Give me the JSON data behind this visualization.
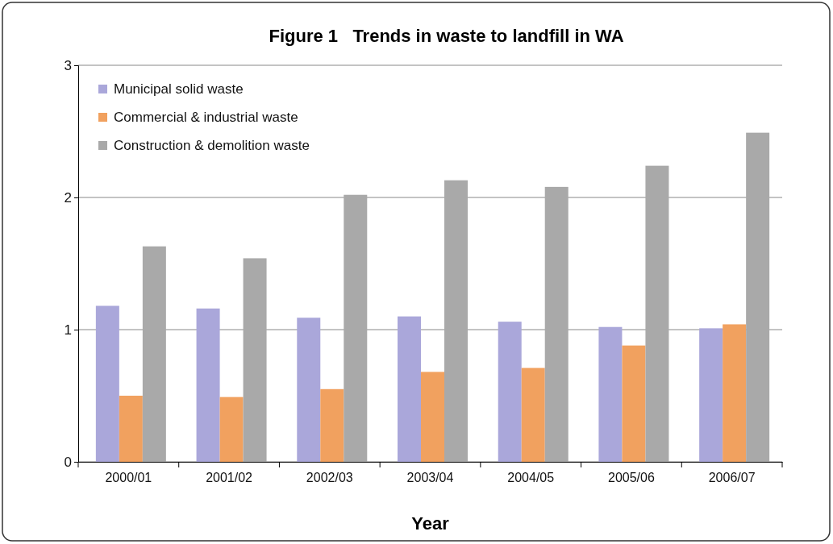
{
  "chart_data": {
    "type": "bar",
    "title": "Figure 1   Trends in waste to landfill in WA",
    "xlabel": "Year",
    "categories": [
      "2000/01",
      "2001/02",
      "2002/03",
      "2003/04",
      "2004/05",
      "2005/06",
      "2006/07"
    ],
    "series": [
      {
        "name": "Municipal solid waste",
        "color": "#aaa7da",
        "values": [
          1.18,
          1.16,
          1.09,
          1.1,
          1.06,
          1.02,
          1.01
        ]
      },
      {
        "name": "Commercial & industrial waste",
        "color": "#f1a15f",
        "values": [
          0.5,
          0.49,
          0.55,
          0.68,
          0.71,
          0.88,
          1.04
        ]
      },
      {
        "name": "Construction & demolition waste",
        "color": "#a9a9a9",
        "values": [
          1.63,
          1.54,
          2.02,
          2.13,
          2.08,
          2.24,
          2.49
        ]
      }
    ],
    "ylim": [
      0,
      3
    ],
    "yticks": [
      0,
      1,
      2,
      3
    ],
    "grid": "y",
    "legend": "top left"
  }
}
